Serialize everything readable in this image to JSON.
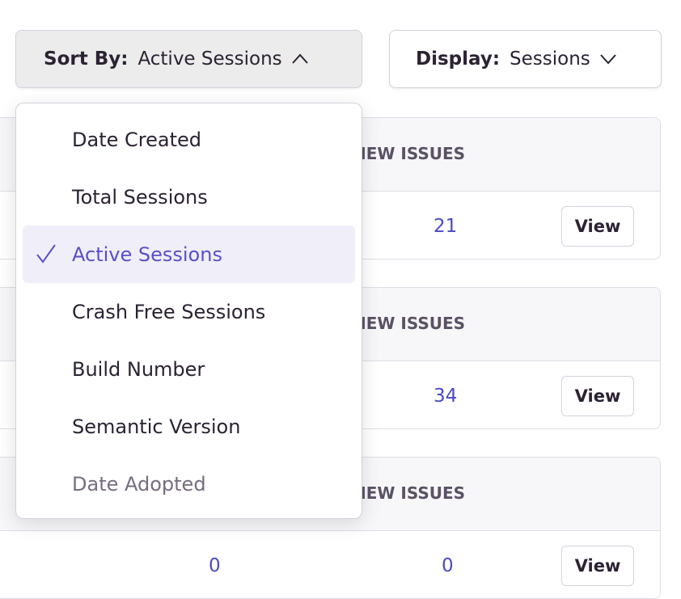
{
  "toolbar": {
    "sort_label": "Sort By:",
    "sort_value": "Active Sessions",
    "display_label": "Display:",
    "display_value": "Sessions"
  },
  "sort_menu": {
    "items": [
      {
        "label": "Date Created",
        "selected": false
      },
      {
        "label": "Total Sessions",
        "selected": false
      },
      {
        "label": "Active Sessions",
        "selected": true
      },
      {
        "label": "Crash Free Sessions",
        "selected": false
      },
      {
        "label": "Build Number",
        "selected": false
      },
      {
        "label": "Semantic Version",
        "selected": false
      },
      {
        "label": "Date Adopted",
        "selected": false,
        "disabled": true
      }
    ]
  },
  "releases": [
    {
      "header": "NEW ISSUES",
      "new_issues": "21",
      "view_label": "View"
    },
    {
      "header": "NEW ISSUES",
      "new_issues": "34",
      "view_label": "View"
    },
    {
      "header": "NEW ISSUES",
      "other_value": "0",
      "new_issues": "0",
      "view_label": "View"
    }
  ],
  "colors": {
    "accent": "#5a4fc8",
    "link": "#4a4bc4",
    "selected_bg": "#f0eef9"
  }
}
